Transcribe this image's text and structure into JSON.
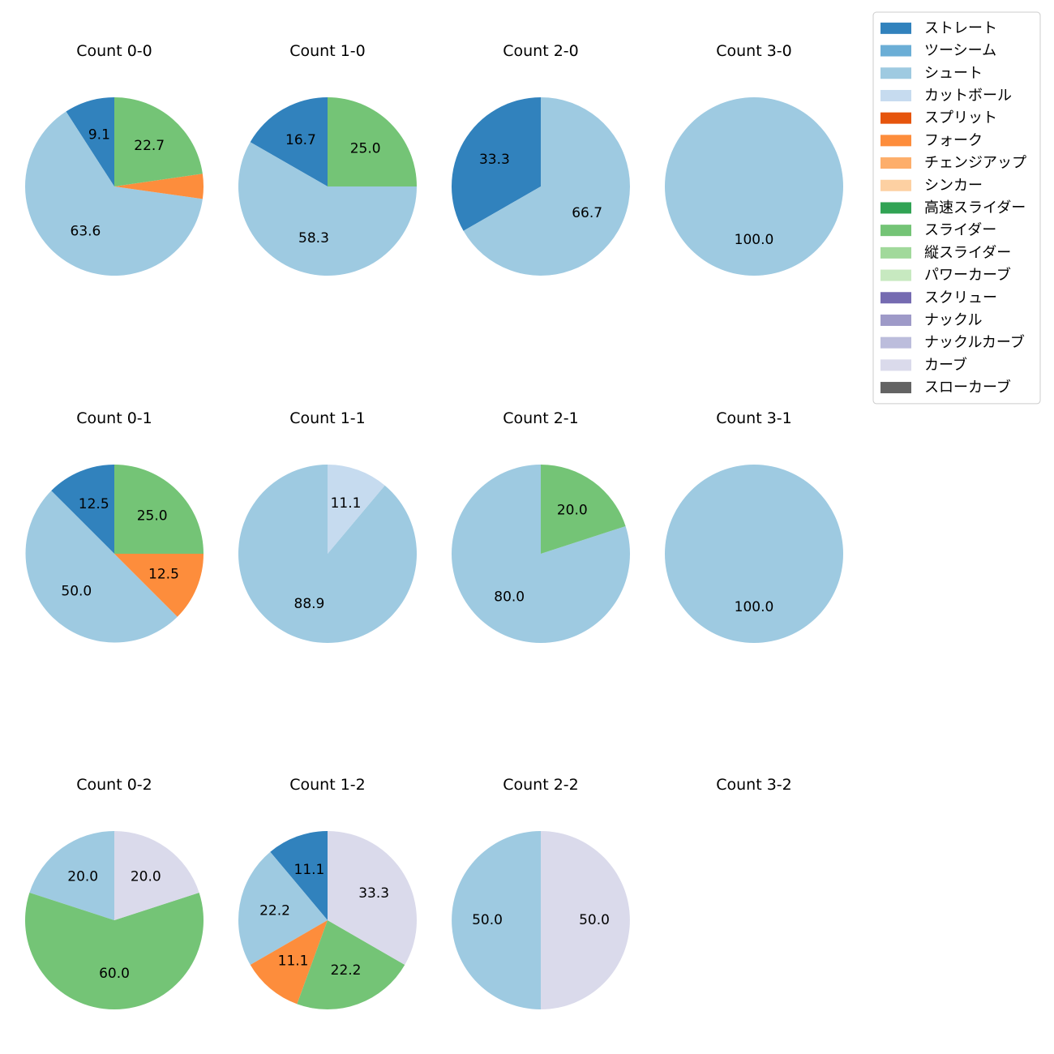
{
  "chart_data": {
    "type": "pie",
    "legend": {
      "placement": "top-right",
      "entries": [
        {
          "name": "ストレート",
          "color": "#3182bd"
        },
        {
          "name": "ツーシーム",
          "color": "#6baed6"
        },
        {
          "name": "シュート",
          "color": "#9ecae1"
        },
        {
          "name": "カットボール",
          "color": "#c6dbef"
        },
        {
          "name": "スプリット",
          "color": "#e6550d"
        },
        {
          "name": "フォーク",
          "color": "#fd8d3c"
        },
        {
          "name": "チェンジアップ",
          "color": "#fdae6b"
        },
        {
          "name": "シンカー",
          "color": "#fdd0a2"
        },
        {
          "name": "高速スライダー",
          "color": "#31a354"
        },
        {
          "name": "スライダー",
          "color": "#74c476"
        },
        {
          "name": "縦スライダー",
          "color": "#a1d99b"
        },
        {
          "name": "パワーカーブ",
          "color": "#c7e9c0"
        },
        {
          "name": "スクリュー",
          "color": "#756bb1"
        },
        {
          "name": "ナックル",
          "color": "#9e9ac8"
        },
        {
          "name": "ナックルカーブ",
          "color": "#bcbddc"
        },
        {
          "name": "カーブ",
          "color": "#dadaeb"
        },
        {
          "name": "スローカーブ",
          "color": "#636363"
        }
      ]
    },
    "panels": [
      {
        "title": "Count 0-0",
        "slices": [
          {
            "pitch": "ストレート",
            "value": 9.1
          },
          {
            "pitch": "シュート",
            "value": 63.6
          },
          {
            "pitch": "フォーク",
            "value": 4.5,
            "label": ""
          },
          {
            "pitch": "スライダー",
            "value": 22.7
          }
        ]
      },
      {
        "title": "Count 1-0",
        "slices": [
          {
            "pitch": "ストレート",
            "value": 16.7
          },
          {
            "pitch": "シュート",
            "value": 58.3
          },
          {
            "pitch": "スライダー",
            "value": 25.0
          }
        ]
      },
      {
        "title": "Count 2-0",
        "slices": [
          {
            "pitch": "ストレート",
            "value": 33.3
          },
          {
            "pitch": "シュート",
            "value": 66.7
          }
        ]
      },
      {
        "title": "Count 3-0",
        "slices": [
          {
            "pitch": "シュート",
            "value": 100.0
          }
        ]
      },
      {
        "title": "Count 0-1",
        "slices": [
          {
            "pitch": "ストレート",
            "value": 12.5
          },
          {
            "pitch": "シュート",
            "value": 50.0
          },
          {
            "pitch": "フォーク",
            "value": 12.5
          },
          {
            "pitch": "スライダー",
            "value": 25.0
          }
        ]
      },
      {
        "title": "Count 1-1",
        "slices": [
          {
            "pitch": "シュート",
            "value": 88.9
          },
          {
            "pitch": "カットボール",
            "value": 11.1
          }
        ]
      },
      {
        "title": "Count 2-1",
        "slices": [
          {
            "pitch": "シュート",
            "value": 80.0
          },
          {
            "pitch": "スライダー",
            "value": 20.0
          }
        ]
      },
      {
        "title": "Count 3-1",
        "slices": [
          {
            "pitch": "シュート",
            "value": 100.0
          }
        ]
      },
      {
        "title": "Count 0-2",
        "slices": [
          {
            "pitch": "シュート",
            "value": 20.0
          },
          {
            "pitch": "スライダー",
            "value": 60.0
          },
          {
            "pitch": "カーブ",
            "value": 20.0
          }
        ]
      },
      {
        "title": "Count 1-2",
        "slices": [
          {
            "pitch": "ストレート",
            "value": 11.1
          },
          {
            "pitch": "シュート",
            "value": 22.2
          },
          {
            "pitch": "フォーク",
            "value": 11.1
          },
          {
            "pitch": "スライダー",
            "value": 22.2
          },
          {
            "pitch": "カーブ",
            "value": 33.3
          }
        ]
      },
      {
        "title": "Count 2-2",
        "slices": [
          {
            "pitch": "シュート",
            "value": 50.0
          },
          {
            "pitch": "カーブ",
            "value": 50.0
          }
        ]
      },
      {
        "title": "Count 3-2",
        "slices": []
      }
    ]
  }
}
